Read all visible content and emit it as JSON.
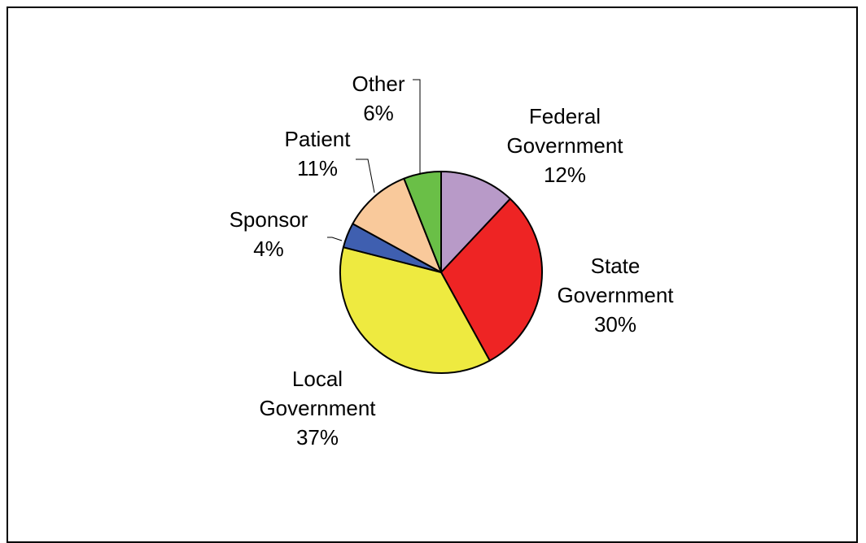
{
  "chart_data": {
    "type": "pie",
    "slices": [
      {
        "label_lines": [
          "Federal",
          "Government"
        ],
        "pct_label": "12%",
        "value": 12,
        "color": "#b89ac8"
      },
      {
        "label_lines": [
          "State",
          "Government"
        ],
        "pct_label": "30%",
        "value": 30,
        "color": "#ee2424"
      },
      {
        "label_lines": [
          "Local",
          "Government"
        ],
        "pct_label": "37%",
        "value": 37,
        "color": "#eeea40"
      },
      {
        "label_lines": [
          "Sponsor"
        ],
        "pct_label": "4%",
        "value": 4,
        "color": "#3f5fb0"
      },
      {
        "label_lines": [
          "Patient"
        ],
        "pct_label": "11%",
        "value": 11,
        "color": "#f9c99b"
      },
      {
        "label_lines": [
          "Other"
        ],
        "pct_label": "6%",
        "value": 6,
        "color": "#6abf47"
      }
    ],
    "start_angle": "12 o'clock",
    "direction": "clockwise",
    "legend": "none"
  }
}
